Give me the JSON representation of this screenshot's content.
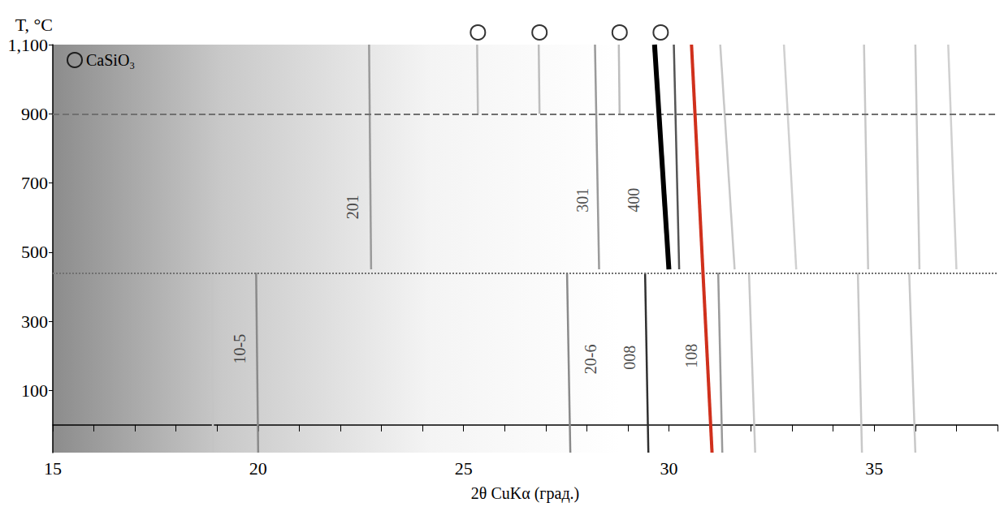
{
  "chart_data": {
    "type": "line",
    "x_label": "2θ CuKα (град.)",
    "y_label": "T, °C",
    "xlim": [
      15,
      38
    ],
    "xticks": [
      15,
      20,
      25,
      30,
      35
    ],
    "ylim": [
      -80,
      1100
    ],
    "yticks": [
      100,
      300,
      500,
      700,
      900,
      1100
    ],
    "grid": false,
    "legend": "upper left",
    "series": [
      {
        "x": [
          18.9,
          18.88
        ],
        "values": [
          -80,
          440
        ],
        "color": "#c4c4c4",
        "line_style": "solid"
      },
      {
        "x": [
          20.0,
          19.95
        ],
        "values": [
          -80,
          440
        ],
        "color": "#8a8a8a",
        "line_style": "solid"
      },
      {
        "x": [
          27.6,
          27.52
        ],
        "values": [
          -80,
          440
        ],
        "color": "#8a8a8a",
        "line_style": "solid"
      },
      {
        "x": [
          29.5,
          29.42
        ],
        "values": [
          -80,
          440
        ],
        "color": "#303030",
        "line_style": "solid"
      },
      {
        "x": [
          31.3,
          31.2
        ],
        "values": [
          -80,
          440
        ],
        "color": "#9a9a9a",
        "line_style": "solid"
      },
      {
        "x": [
          32.1,
          31.95
        ],
        "values": [
          -80,
          440
        ],
        "color": "#c8c8c8",
        "line_style": "solid"
      },
      {
        "x": [
          34.7,
          34.6
        ],
        "values": [
          -80,
          440
        ],
        "color": "#c8c8c8",
        "line_style": "solid"
      },
      {
        "x": [
          36.0,
          35.85
        ],
        "values": [
          -80,
          440
        ],
        "color": "#c8c8c8",
        "line_style": "solid"
      },
      {
        "x": [
          22.75,
          22.7
        ],
        "values": [
          450,
          1100
        ],
        "color": "#9a9a9a",
        "line_style": "solid"
      },
      {
        "x": [
          28.3,
          28.2
        ],
        "values": [
          450,
          1100
        ],
        "color": "#9a9a9a",
        "line_style": "solid"
      },
      {
        "x": [
          30.25,
          30.12
        ],
        "values": [
          450,
          1100
        ],
        "color": "#555555",
        "line_style": "solid"
      },
      {
        "x": [
          31.6,
          31.25
        ],
        "values": [
          450,
          1100
        ],
        "color": "#c8c8c8",
        "line_style": "solid"
      },
      {
        "x": [
          33.1,
          32.8
        ],
        "values": [
          450,
          1100
        ],
        "color": "#d0d0d0",
        "line_style": "solid"
      },
      {
        "x": [
          34.85,
          34.75
        ],
        "values": [
          450,
          1100
        ],
        "color": "#c8c8c8",
        "line_style": "solid"
      },
      {
        "x": [
          36.1,
          36.0
        ],
        "values": [
          450,
          1100
        ],
        "color": "#c8c8c8",
        "line_style": "solid"
      },
      {
        "x": [
          37.0,
          36.8
        ],
        "values": [
          450,
          1100
        ],
        "color": "#d0d0d0",
        "line_style": "solid"
      },
      {
        "x": [
          25.35,
          25.33
        ],
        "values": [
          900,
          1100
        ],
        "color": "#bdbdbd",
        "line_style": "solid"
      },
      {
        "x": [
          26.85,
          26.83
        ],
        "values": [
          900,
          1100
        ],
        "color": "#bdbdbd",
        "line_style": "solid"
      },
      {
        "x": [
          28.8,
          28.78
        ],
        "values": [
          900,
          1100
        ],
        "color": "#bdbdbd",
        "line_style": "solid"
      },
      {
        "x": [
          30.0,
          29.65
        ],
        "values": [
          450,
          1100
        ],
        "color": "#000000",
        "line_style": "thick"
      },
      {
        "x": [
          31.05,
          30.55
        ],
        "values": [
          -80,
          1100
        ],
        "color": "#d0301c",
        "line_style": "thick"
      },
      {
        "name": "CaSiO₃",
        "type": "scatter",
        "marker": "circle",
        "x": [
          25.35,
          26.85,
          28.8,
          29.8
        ],
        "color": "#000000"
      }
    ],
    "reference_lines": [
      {
        "y": 900,
        "line_style": "dashed",
        "color": "#707070"
      },
      {
        "y": 440,
        "line_style": "dotted",
        "color": "#707070"
      }
    ],
    "annotations": [
      {
        "text": "201",
        "x": 22.3,
        "y": 630
      },
      {
        "text": "301",
        "x": 27.9,
        "y": 650
      },
      {
        "text": "400",
        "x": 29.15,
        "y": 650
      },
      {
        "text": "10-5",
        "x": 19.55,
        "y": 220
      },
      {
        "text": "20-6",
        "x": 28.1,
        "y": 190
      },
      {
        "text": "008",
        "x": 29.05,
        "y": 195
      },
      {
        "text": "108",
        "x": 30.55,
        "y": 200
      }
    ]
  }
}
